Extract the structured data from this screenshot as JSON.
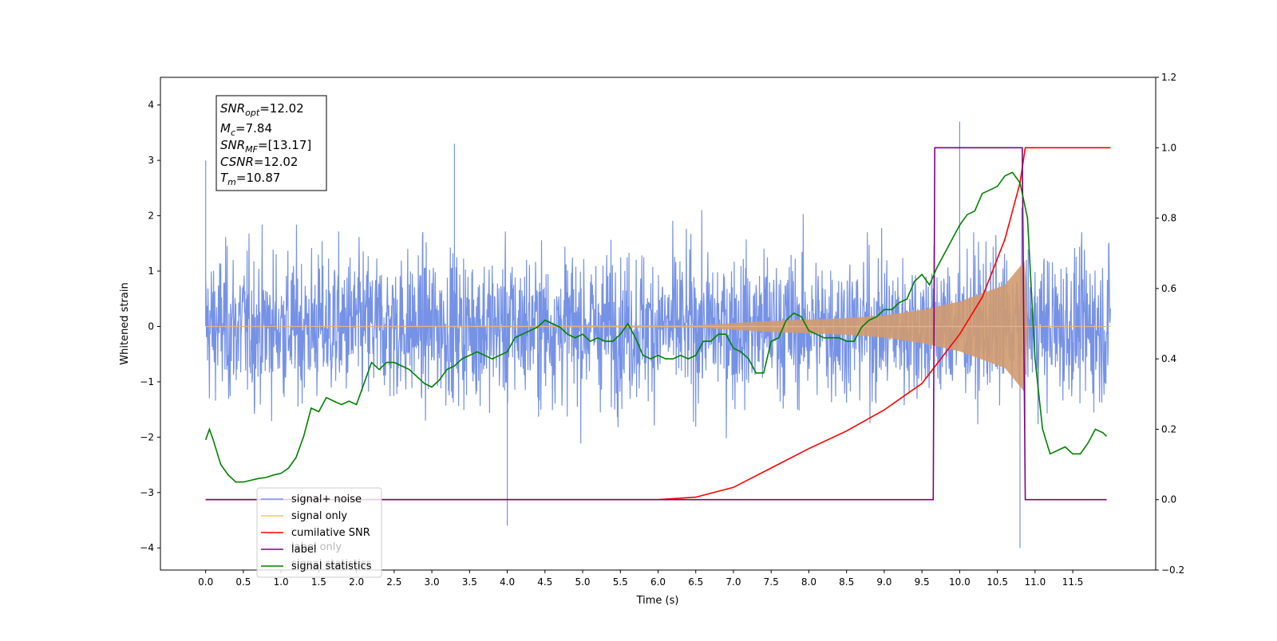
{
  "chart_data": {
    "type": "line",
    "xlabel": "Time (s)",
    "ylabel": "Whitened strain",
    "xlim": [
      -0.6,
      12.6
    ],
    "ylim": [
      -4.4,
      4.5
    ],
    "y2lim": [
      -0.2,
      1.2
    ],
    "xticks": [
      "0.0",
      "0.5",
      "1.0",
      "1.5",
      "2.0",
      "2.5",
      "3.0",
      "3.5",
      "4.0",
      "4.5",
      "5.0",
      "5.5",
      "6.0",
      "6.5",
      "7.0",
      "7.5",
      "8.0",
      "8.5",
      "9.0",
      "9.5",
      "10.0",
      "10.5",
      "11.0",
      "11.5"
    ],
    "yticks": [
      "4",
      "3",
      "2",
      "1",
      "0",
      "−1",
      "−2",
      "−3",
      "−4"
    ],
    "y2ticks": [
      "1.2",
      "1.0",
      "0.8",
      "0.6",
      "0.4",
      "0.2",
      "0.0",
      "−0.2"
    ],
    "textbox": {
      "snr_opt": "=12.02",
      "mc": "=7.84",
      "snr_mf": "=[13.17]",
      "csnr": "=12.02",
      "tm": "=10.87"
    },
    "legend": {
      "position": "lower-left",
      "entries": [
        {
          "label": "signal+ noise",
          "color": "#7b96e8"
        },
        {
          "label": "signal only",
          "color": "#ffbf70"
        },
        {
          "label": "cumilative SNR",
          "color": "#ff0000"
        },
        {
          "label": "label",
          "color": "#800080"
        },
        {
          "label": "signal statistics",
          "color": "#008000"
        }
      ],
      "ghost_text": [
        "label only",
        "signal statistics"
      ]
    },
    "series": [
      {
        "name": "signal+ noise",
        "axis": "left",
        "color": "#6f8ce5",
        "amplitude_envelope": [
          [
            0,
            2.1
          ],
          [
            12,
            2.1
          ]
        ],
        "peaks": [
          [
            0.0,
            3.0
          ],
          [
            10.0,
            3.7
          ],
          [
            10.8,
            -4.0
          ],
          [
            4.0,
            -3.6
          ],
          [
            3.3,
            3.3
          ]
        ]
      },
      {
        "name": "signal only",
        "axis": "left",
        "color": "#d29b6f",
        "amplitude_envelope": [
          [
            0,
            0.0
          ],
          [
            6.5,
            0.02
          ],
          [
            7.5,
            0.1
          ],
          [
            8.5,
            0.15
          ],
          [
            9.0,
            0.2
          ],
          [
            9.5,
            0.3
          ],
          [
            10.0,
            0.45
          ],
          [
            10.3,
            0.6
          ],
          [
            10.6,
            0.75
          ],
          [
            10.75,
            1.0
          ],
          [
            10.87,
            1.2
          ],
          [
            10.9,
            0.0
          ],
          [
            12,
            0.0
          ]
        ]
      },
      {
        "name": "cumilative SNR",
        "axis": "right",
        "color": "#ff0000",
        "x": [
          0,
          6.0,
          6.5,
          7.0,
          7.5,
          8.0,
          8.5,
          9.0,
          9.5,
          10.0,
          10.3,
          10.6,
          10.8,
          10.87,
          10.9,
          12
        ],
        "y": [
          0.0,
          0.0,
          0.007,
          0.035,
          0.09,
          0.145,
          0.195,
          0.255,
          0.33,
          0.47,
          0.575,
          0.74,
          0.9,
          1.0,
          1.0,
          1.0
        ]
      },
      {
        "name": "label",
        "axis": "right",
        "color": "#800080",
        "x": [
          0,
          9.65,
          9.67,
          10.83,
          10.87,
          11.95
        ],
        "y": [
          0.0,
          0.0,
          1.0,
          1.0,
          0.0,
          0.0
        ]
      },
      {
        "name": "signal statistics",
        "axis": "right",
        "color": "#008000",
        "x": [
          0.0,
          0.05,
          0.1,
          0.2,
          0.3,
          0.4,
          0.5,
          0.6,
          0.7,
          0.8,
          0.9,
          1.0,
          1.1,
          1.2,
          1.3,
          1.4,
          1.5,
          1.6,
          1.7,
          1.8,
          1.9,
          2.0,
          2.1,
          2.2,
          2.3,
          2.4,
          2.5,
          2.6,
          2.7,
          2.8,
          2.9,
          3.0,
          3.1,
          3.2,
          3.3,
          3.4,
          3.5,
          3.6,
          3.7,
          3.8,
          3.9,
          4.0,
          4.1,
          4.2,
          4.3,
          4.4,
          4.5,
          4.6,
          4.7,
          4.8,
          4.9,
          5.0,
          5.1,
          5.2,
          5.3,
          5.4,
          5.5,
          5.6,
          5.7,
          5.8,
          5.9,
          6.0,
          6.1,
          6.2,
          6.3,
          6.4,
          6.5,
          6.6,
          6.7,
          6.8,
          6.9,
          7.0,
          7.1,
          7.2,
          7.3,
          7.4,
          7.5,
          7.6,
          7.7,
          7.8,
          7.9,
          8.0,
          8.1,
          8.2,
          8.3,
          8.4,
          8.5,
          8.6,
          8.7,
          8.8,
          8.9,
          9.0,
          9.1,
          9.2,
          9.3,
          9.4,
          9.5,
          9.6,
          9.7,
          9.8,
          9.9,
          10.0,
          10.1,
          10.2,
          10.3,
          10.4,
          10.5,
          10.6,
          10.7,
          10.8,
          10.9,
          11.0,
          11.1,
          11.2,
          11.3,
          11.4,
          11.5,
          11.6,
          11.7,
          11.8,
          11.9,
          11.95
        ],
        "y": [
          0.17,
          0.2,
          0.17,
          0.1,
          0.07,
          0.05,
          0.05,
          0.055,
          0.06,
          0.063,
          0.07,
          0.075,
          0.09,
          0.12,
          0.18,
          0.26,
          0.25,
          0.29,
          0.28,
          0.27,
          0.28,
          0.27,
          0.33,
          0.39,
          0.37,
          0.39,
          0.39,
          0.38,
          0.37,
          0.35,
          0.33,
          0.32,
          0.34,
          0.37,
          0.38,
          0.4,
          0.41,
          0.42,
          0.41,
          0.4,
          0.41,
          0.42,
          0.46,
          0.47,
          0.48,
          0.49,
          0.51,
          0.5,
          0.49,
          0.47,
          0.46,
          0.47,
          0.45,
          0.46,
          0.45,
          0.45,
          0.47,
          0.5,
          0.46,
          0.41,
          0.4,
          0.41,
          0.4,
          0.4,
          0.41,
          0.4,
          0.41,
          0.45,
          0.45,
          0.47,
          0.47,
          0.43,
          0.42,
          0.4,
          0.36,
          0.36,
          0.45,
          0.46,
          0.51,
          0.53,
          0.52,
          0.48,
          0.47,
          0.46,
          0.46,
          0.46,
          0.45,
          0.45,
          0.49,
          0.51,
          0.52,
          0.54,
          0.54,
          0.56,
          0.57,
          0.62,
          0.64,
          0.61,
          0.66,
          0.7,
          0.74,
          0.78,
          0.81,
          0.82,
          0.87,
          0.88,
          0.89,
          0.92,
          0.93,
          0.9,
          0.8,
          0.4,
          0.2,
          0.13,
          0.14,
          0.15,
          0.13,
          0.13,
          0.16,
          0.2,
          0.19,
          0.18
        ]
      }
    ]
  }
}
